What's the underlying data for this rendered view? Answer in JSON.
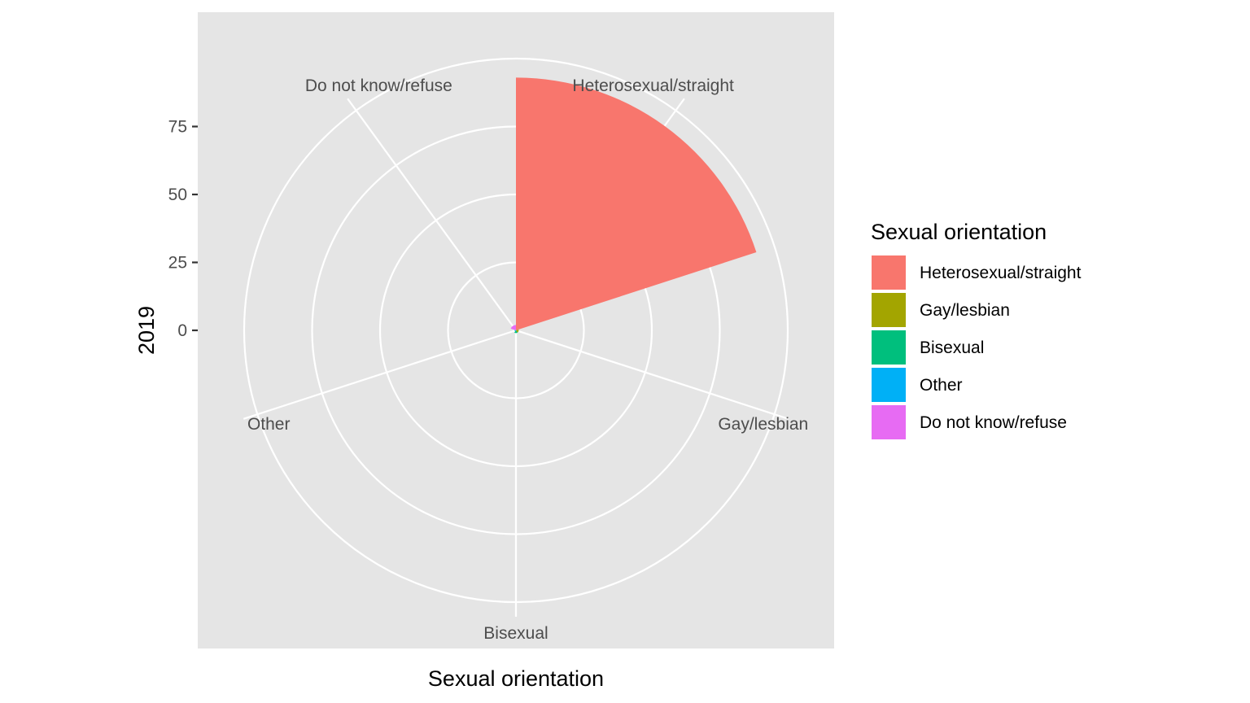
{
  "chart_data": {
    "type": "pie",
    "coord": "polar",
    "xlabel": "Sexual orientation",
    "ylabel": "2019",
    "categories": [
      "Heterosexual/straight",
      "Gay/lesbian",
      "Bisexual",
      "Other",
      "Do not know/refuse"
    ],
    "values": [
      93,
      1,
      1,
      0.5,
      2
    ],
    "colors": [
      "#F8766D",
      "#A3A500",
      "#00BF7D",
      "#00B0F6",
      "#E76BF3"
    ],
    "y_ticks": [
      0,
      25,
      50,
      75
    ],
    "y_tick_labels": [
      "0",
      "25",
      "50",
      "75"
    ],
    "ylim": [
      0,
      105
    ],
    "grid": true,
    "legend": {
      "title": "Sexual orientation",
      "position": "right",
      "entries": [
        "Heterosexual/straight",
        "Gay/lesbian",
        "Bisexual",
        "Other",
        "Do not know/refuse"
      ]
    }
  }
}
